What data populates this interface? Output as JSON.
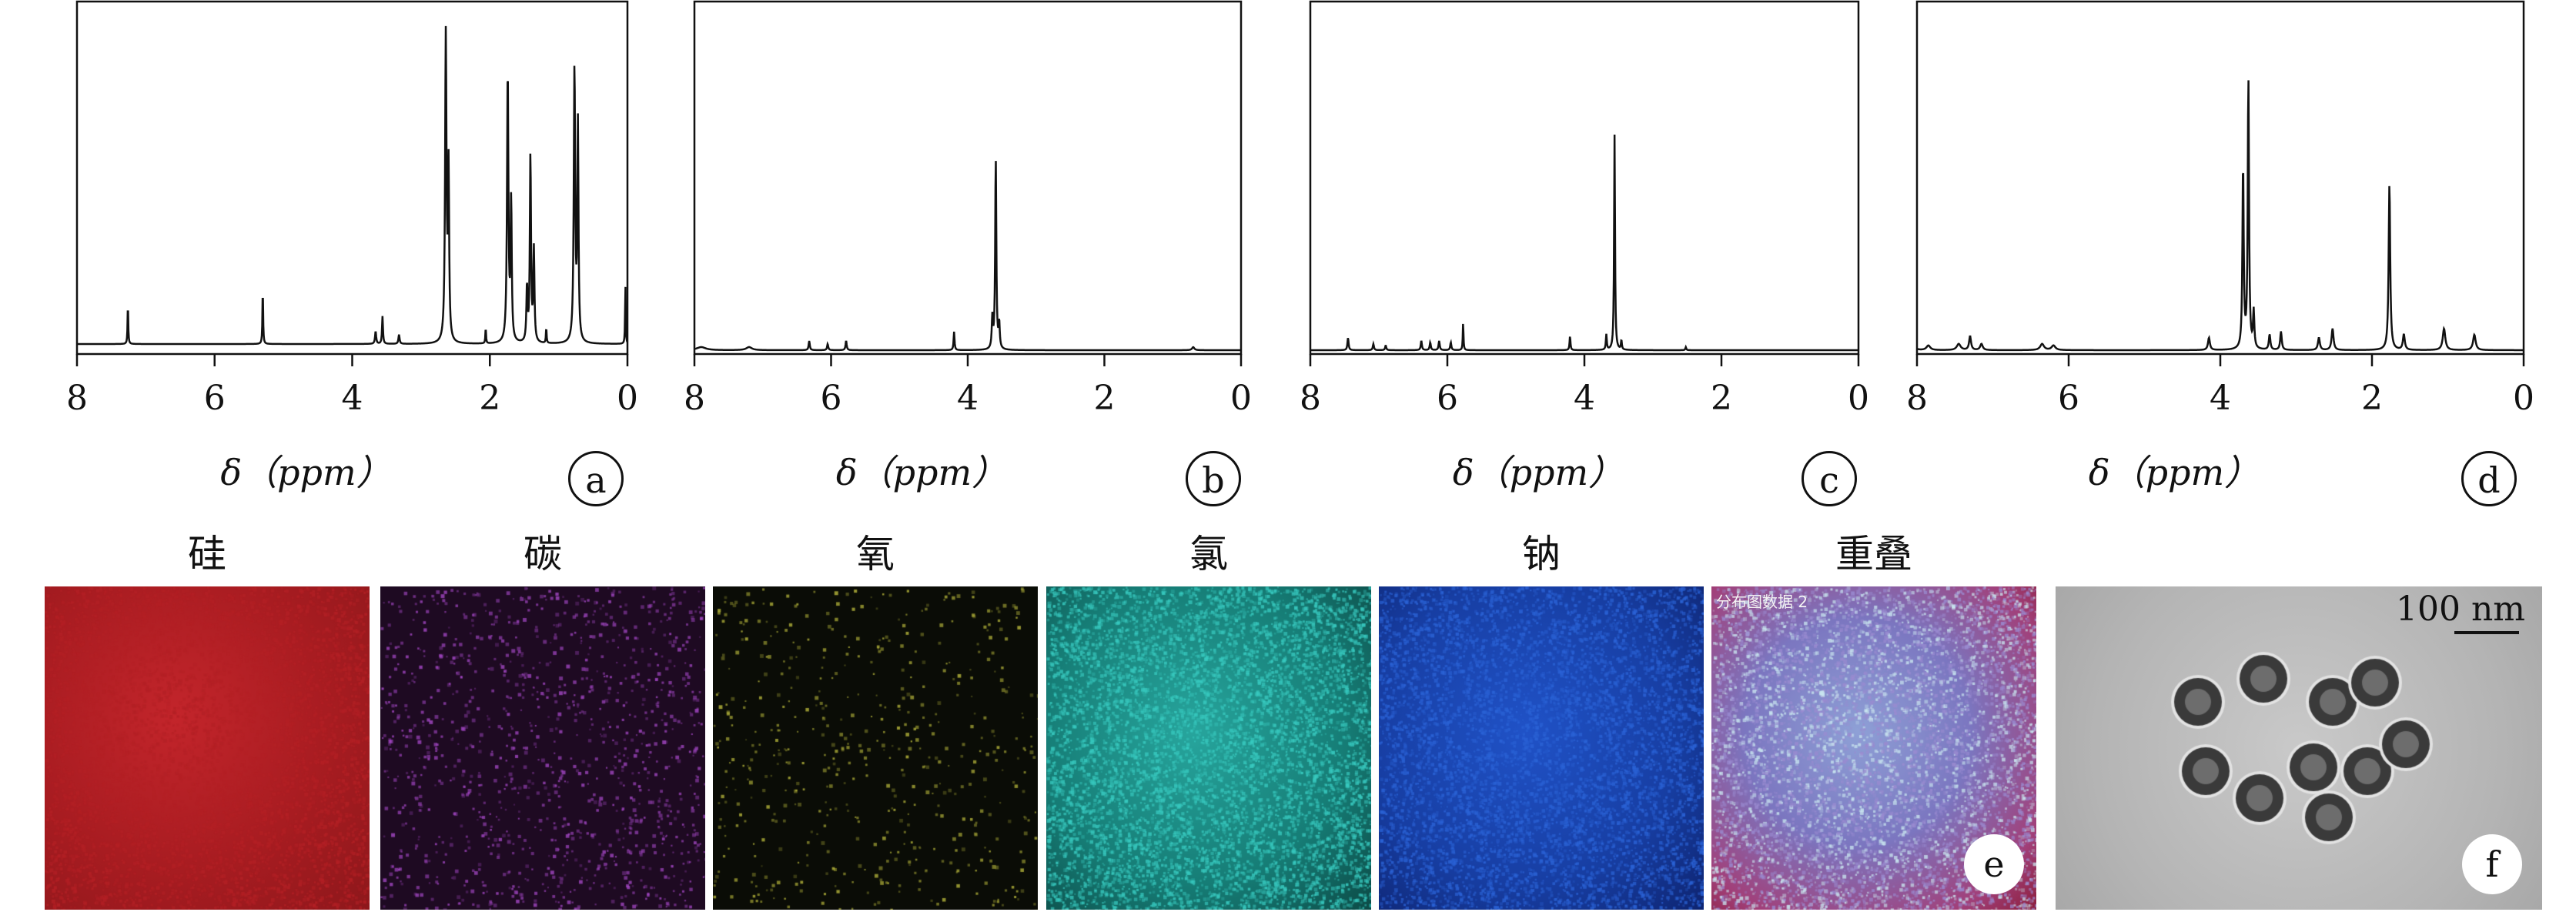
{
  "chart_data": [
    {
      "type": "line",
      "panel": "a",
      "xlabel": "δ（ppm）",
      "xlim": [
        8,
        0
      ],
      "xticks": [
        8,
        6,
        4,
        2,
        0
      ],
      "series": [
        {
          "baseline": 0.02,
          "peaks": [
            {
              "x": 7.26,
              "h": 0.13,
              "w": 0.006
            },
            {
              "x": 5.3,
              "h": 0.18,
              "w": 0.006
            },
            {
              "x": 3.66,
              "h": 0.04,
              "w": 0.01
            },
            {
              "x": 3.56,
              "h": 0.09,
              "w": 0.008
            },
            {
              "x": 3.32,
              "h": 0.03,
              "w": 0.01
            },
            {
              "x": 2.64,
              "h": 1.0,
              "w": 0.012
            },
            {
              "x": 2.6,
              "h": 0.55,
              "w": 0.01
            },
            {
              "x": 2.06,
              "h": 0.05,
              "w": 0.006
            },
            {
              "x": 1.74,
              "h": 0.88,
              "w": 0.012
            },
            {
              "x": 1.69,
              "h": 0.45,
              "w": 0.01
            },
            {
              "x": 1.46,
              "h": 0.18,
              "w": 0.01
            },
            {
              "x": 1.41,
              "h": 0.61,
              "w": 0.01
            },
            {
              "x": 1.36,
              "h": 0.3,
              "w": 0.01
            },
            {
              "x": 1.18,
              "h": 0.05,
              "w": 0.006
            },
            {
              "x": 0.77,
              "h": 0.89,
              "w": 0.012
            },
            {
              "x": 0.72,
              "h": 0.7,
              "w": 0.01
            },
            {
              "x": 0.03,
              "h": 0.2,
              "w": 0.005
            }
          ]
        }
      ]
    },
    {
      "type": "line",
      "panel": "b",
      "xlabel": "δ（ppm）",
      "xlim": [
        8,
        0
      ],
      "xticks": [
        8,
        6,
        4,
        2,
        0
      ],
      "series": [
        {
          "baseline": 0.0,
          "peaks": [
            {
              "x": 7.9,
              "h": 0.01,
              "w": 0.08
            },
            {
              "x": 7.2,
              "h": 0.01,
              "w": 0.05
            },
            {
              "x": 6.32,
              "h": 0.03,
              "w": 0.01
            },
            {
              "x": 6.05,
              "h": 0.02,
              "w": 0.01
            },
            {
              "x": 5.78,
              "h": 0.03,
              "w": 0.01
            },
            {
              "x": 4.2,
              "h": 0.06,
              "w": 0.008
            },
            {
              "x": 3.64,
              "h": 0.1,
              "w": 0.01
            },
            {
              "x": 3.59,
              "h": 0.62,
              "w": 0.01
            },
            {
              "x": 3.54,
              "h": 0.08,
              "w": 0.01
            },
            {
              "x": 0.7,
              "h": 0.01,
              "w": 0.02
            }
          ]
        }
      ]
    },
    {
      "type": "line",
      "panel": "c",
      "xlabel": "δ（ppm）",
      "xlim": [
        8,
        0
      ],
      "xticks": [
        8,
        6,
        4,
        2,
        0
      ],
      "series": [
        {
          "baseline": 0.0,
          "peaks": [
            {
              "x": 7.45,
              "h": 0.04,
              "w": 0.01
            },
            {
              "x": 7.08,
              "h": 0.02,
              "w": 0.01
            },
            {
              "x": 6.9,
              "h": 0.015,
              "w": 0.01
            },
            {
              "x": 6.38,
              "h": 0.03,
              "w": 0.01
            },
            {
              "x": 6.25,
              "h": 0.025,
              "w": 0.01
            },
            {
              "x": 6.12,
              "h": 0.03,
              "w": 0.01
            },
            {
              "x": 5.95,
              "h": 0.025,
              "w": 0.01
            },
            {
              "x": 5.77,
              "h": 0.09,
              "w": 0.006
            },
            {
              "x": 4.21,
              "h": 0.045,
              "w": 0.008
            },
            {
              "x": 3.68,
              "h": 0.05,
              "w": 0.008
            },
            {
              "x": 3.56,
              "h": 0.7,
              "w": 0.008
            },
            {
              "x": 3.46,
              "h": 0.03,
              "w": 0.008
            },
            {
              "x": 2.52,
              "h": 0.01,
              "w": 0.008
            }
          ]
        }
      ]
    },
    {
      "type": "line",
      "panel": "d",
      "xlabel": "δ（ppm）",
      "xlim": [
        8,
        0
      ],
      "xticks": [
        8,
        6,
        4,
        2,
        0
      ],
      "series": [
        {
          "baseline": 0.0,
          "peaks": [
            {
              "x": 8.05,
              "h": 0.015,
              "w": 0.03
            },
            {
              "x": 7.85,
              "h": 0.015,
              "w": 0.03
            },
            {
              "x": 7.45,
              "h": 0.02,
              "w": 0.03
            },
            {
              "x": 7.3,
              "h": 0.045,
              "w": 0.015
            },
            {
              "x": 7.15,
              "h": 0.02,
              "w": 0.02
            },
            {
              "x": 6.35,
              "h": 0.02,
              "w": 0.03
            },
            {
              "x": 6.2,
              "h": 0.015,
              "w": 0.03
            },
            {
              "x": 4.15,
              "h": 0.04,
              "w": 0.015
            },
            {
              "x": 3.7,
              "h": 0.6,
              "w": 0.01
            },
            {
              "x": 3.63,
              "h": 0.88,
              "w": 0.01
            },
            {
              "x": 3.56,
              "h": 0.12,
              "w": 0.01
            },
            {
              "x": 3.35,
              "h": 0.05,
              "w": 0.012
            },
            {
              "x": 3.2,
              "h": 0.06,
              "w": 0.012
            },
            {
              "x": 2.7,
              "h": 0.04,
              "w": 0.015
            },
            {
              "x": 2.52,
              "h": 0.07,
              "w": 0.015
            },
            {
              "x": 1.77,
              "h": 0.54,
              "w": 0.012
            },
            {
              "x": 1.58,
              "h": 0.05,
              "w": 0.015
            },
            {
              "x": 1.05,
              "h": 0.07,
              "w": 0.02
            },
            {
              "x": 0.65,
              "h": 0.05,
              "w": 0.02
            }
          ]
        }
      ]
    }
  ],
  "nmr_badges": [
    "a",
    "b",
    "c",
    "d"
  ],
  "maps": {
    "titles": [
      "硅",
      "碳",
      "氧",
      "氯",
      "钠",
      "重叠"
    ],
    "colors": [
      "#b32025",
      "#a347c4",
      "#b9b93c",
      "#38c9bf",
      "#2b63d6",
      "#9a8bd0"
    ],
    "overlay_caption": "分布图数据 2",
    "badge_e": "e"
  },
  "tem": {
    "scalebar": "100 nm",
    "badge_f": "f"
  }
}
